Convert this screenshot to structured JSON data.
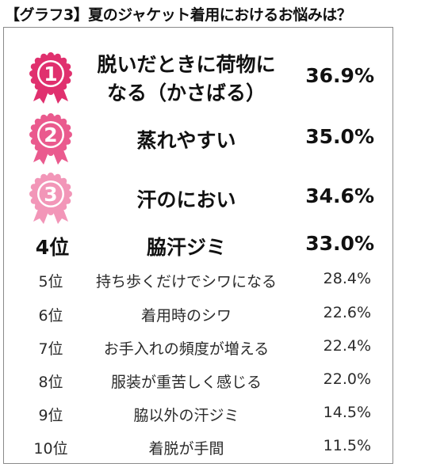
{
  "title": "【グラフ3】夏のジャケット着用におけるお悩みは？",
  "chart_data": {
    "type": "table",
    "title": "【グラフ3】夏のジャケット着用におけるお悩みは？",
    "colors": {
      "rank1": "#e0306e",
      "rank2": "#ea5a8e",
      "rank3": "#f296b8"
    },
    "rows": [
      {
        "rank": "1",
        "label_line1": "脱いだときに荷物に",
        "label_line2": "なる（かさばる）",
        "value": 36.9,
        "value_text": "36.9%",
        "icon": "rank-1-medal-icon"
      },
      {
        "rank": "2",
        "label": "蒸れやすい",
        "value": 35.0,
        "value_text": "35.0%",
        "icon": "rank-2-medal-icon"
      },
      {
        "rank": "3",
        "label": "汗のにおい",
        "value": 34.6,
        "value_text": "34.6%",
        "icon": "rank-3-medal-icon"
      },
      {
        "rank": "4位",
        "label": "脇汗ジミ",
        "value": 33.0,
        "value_text": "33.0%"
      },
      {
        "rank": "5位",
        "label": "持ち歩くだけでシワになる",
        "value": 28.4,
        "value_text": "28.4%"
      },
      {
        "rank": "6位",
        "label": "着用時のシワ",
        "value": 22.6,
        "value_text": "22.6%"
      },
      {
        "rank": "7位",
        "label": "お手入れの頻度が増える",
        "value": 22.4,
        "value_text": "22.4%"
      },
      {
        "rank": "8位",
        "label": "服装が重苦しく感じる",
        "value": 22.0,
        "value_text": "22.0%"
      },
      {
        "rank": "9位",
        "label": "脇以外の汗ジミ",
        "value": 14.5,
        "value_text": "14.5%"
      },
      {
        "rank": "10位",
        "label": "着脱が手間",
        "value": 11.5,
        "value_text": "11.5%"
      }
    ]
  }
}
